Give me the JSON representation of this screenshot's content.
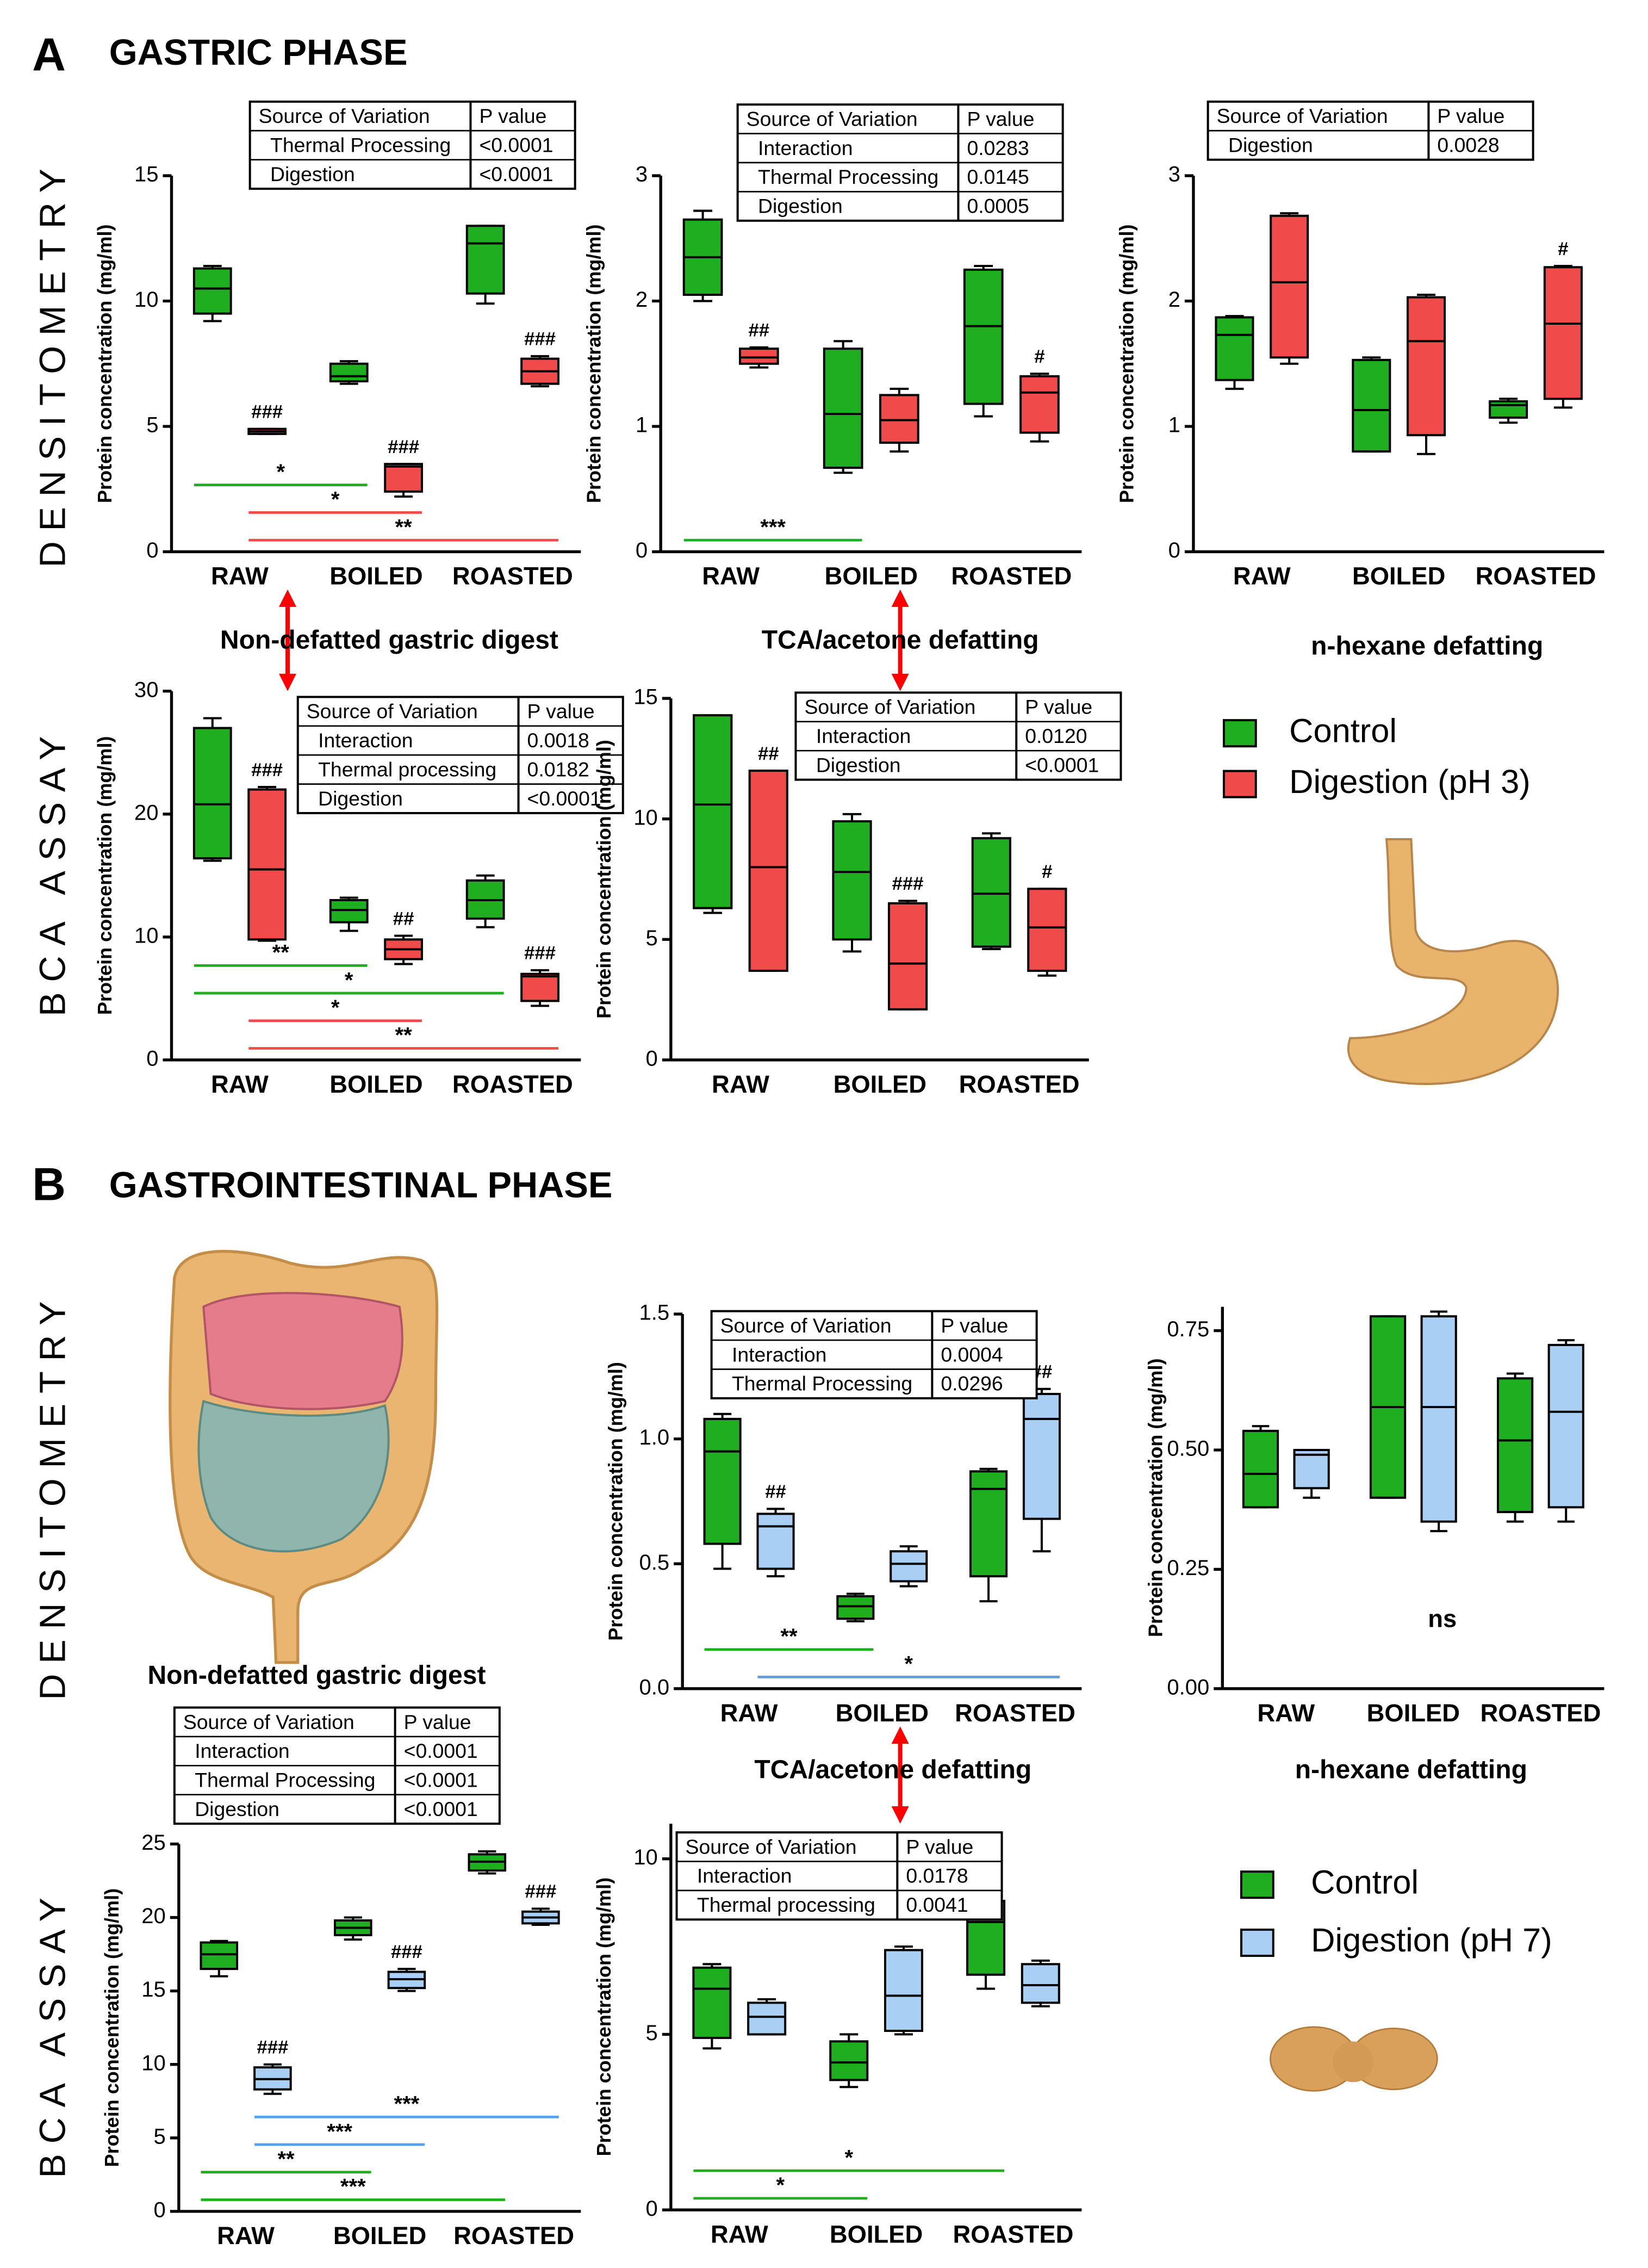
{
  "sections": [
    {
      "label": "A",
      "title": "GASTRIC PHASE",
      "rows": [
        "DENSITOMETRY",
        "BCA ASSAY"
      ],
      "captions": [
        "Non-defatted gastric digest",
        "TCA/acetone defatting",
        "n-hexane defatting"
      ]
    },
    {
      "label": "B",
      "title": "GASTROINTESTINAL PHASE",
      "rows": [
        "DENSITOMETRY",
        "BCA ASSAY"
      ],
      "captions": [
        "Non-defatted gastric digest",
        "TCA/acetone defatting",
        "n-hexane defatting"
      ]
    }
  ],
  "chart_data": [
    {
      "type": "box",
      "ylabel": "Protein concentration (mg/ml)",
      "categories": [
        "RAW",
        "BOILED",
        "ROASTED"
      ],
      "ylim": [
        0,
        15
      ],
      "yticks": [
        0,
        5,
        10,
        15
      ],
      "series": [
        {
          "name": "Control",
          "color": "#1fae1f",
          "min": [
            9.2,
            6.7,
            9.9
          ],
          "q1": [
            9.5,
            6.8,
            10.3
          ],
          "median": [
            10.5,
            7.0,
            12.3
          ],
          "q3": [
            11.3,
            7.5,
            13
          ],
          "max": [
            11.4,
            7.6,
            13
          ],
          "sig_labels": [
            null,
            null,
            null
          ]
        },
        {
          "name": "Digestion (pH 3)",
          "color": "#f04a4a",
          "min": [
            4.7,
            2.2,
            6.6
          ],
          "q1": [
            4.7,
            2.4,
            6.7
          ],
          "median": [
            4.8,
            3.4,
            7.2
          ],
          "q3": [
            4.9,
            3.5,
            7.7
          ],
          "max": [
            4.9,
            3.5,
            7.8
          ],
          "sig_labels": [
            "###",
            "###",
            "###"
          ]
        }
      ],
      "comparisons": [
        {
          "text": "*",
          "series": 0,
          "from": 0,
          "to": 1
        },
        {
          "text": "*",
          "series": 1,
          "from": 0,
          "to": 1
        },
        {
          "text": "**",
          "series": 1,
          "from": 0,
          "to": 2
        }
      ],
      "table": {
        "header": [
          "Source of Variation",
          "P value"
        ],
        "rows": [
          [
            "Thermal Processing",
            "<0.0001"
          ],
          [
            "Digestion",
            "<0.0001"
          ]
        ]
      }
    },
    {
      "type": "box",
      "ylabel": "Protein concentration (mg/ml)",
      "categories": [
        "RAW",
        "BOILED",
        "ROASTED"
      ],
      "ylim": [
        0,
        3
      ],
      "yticks": [
        0,
        1,
        2,
        3
      ],
      "series": [
        {
          "name": "Control",
          "color": "#1fae1f",
          "min": [
            2.0,
            0.63,
            1.08
          ],
          "q1": [
            2.05,
            0.67,
            1.18
          ],
          "median": [
            2.35,
            1.1,
            1.8
          ],
          "q3": [
            2.65,
            1.62,
            2.25
          ],
          "max": [
            2.72,
            1.68,
            2.28
          ],
          "sig_labels": [
            null,
            null,
            null
          ]
        },
        {
          "name": "Digestion (pH 3)",
          "color": "#f04a4a",
          "min": [
            1.47,
            0.8,
            0.88
          ],
          "q1": [
            1.5,
            0.87,
            0.95
          ],
          "median": [
            1.55,
            1.05,
            1.27
          ],
          "q3": [
            1.62,
            1.25,
            1.4
          ],
          "max": [
            1.63,
            1.3,
            1.42
          ],
          "sig_labels": [
            "##",
            null,
            "#"
          ]
        }
      ],
      "comparisons": [
        {
          "text": "***",
          "series": 0,
          "from": 0,
          "to": 1
        }
      ],
      "table": {
        "header": [
          "Source of Variation",
          "P value"
        ],
        "rows": [
          [
            "Interaction",
            "0.0283"
          ],
          [
            "Thermal Processing",
            "0.0145"
          ],
          [
            "Digestion",
            "0.0005"
          ]
        ]
      }
    },
    {
      "type": "box",
      "ylabel": "Protein concentration (mg/ml)",
      "categories": [
        "RAW",
        "BOILED",
        "ROASTED"
      ],
      "ylim": [
        0,
        3
      ],
      "yticks": [
        0,
        1,
        2,
        3
      ],
      "series": [
        {
          "name": "Control",
          "color": "#1fae1f",
          "min": [
            1.3,
            0.8,
            1.03
          ],
          "q1": [
            1.37,
            0.8,
            1.07
          ],
          "median": [
            1.73,
            1.13,
            1.17
          ],
          "q3": [
            1.87,
            1.53,
            1.2
          ],
          "max": [
            1.88,
            1.55,
            1.22
          ],
          "sig_labels": [
            null,
            null,
            null
          ]
        },
        {
          "name": "Digestion (pH 3)",
          "color": "#f04a4a",
          "min": [
            1.5,
            0.78,
            1.15
          ],
          "q1": [
            1.55,
            0.93,
            1.22
          ],
          "median": [
            2.15,
            1.68,
            1.82
          ],
          "q3": [
            2.68,
            2.03,
            2.27
          ],
          "max": [
            2.7,
            2.05,
            2.28
          ],
          "sig_labels": [
            null,
            null,
            "#"
          ]
        }
      ],
      "comparisons": [],
      "table": {
        "header": [
          "Source of Variation",
          "P value"
        ],
        "rows": [
          [
            "Digestion",
            "0.0028"
          ]
        ]
      }
    },
    {
      "type": "box",
      "ylabel": "Protein concentration (mg/ml)",
      "categories": [
        "RAW",
        "BOILED",
        "ROASTED"
      ],
      "ylim": [
        0,
        30
      ],
      "yticks": [
        0,
        10,
        20,
        30
      ],
      "series": [
        {
          "name": "Control",
          "color": "#1fae1f",
          "min": [
            16.2,
            10.5,
            10.8
          ],
          "q1": [
            16.4,
            11.2,
            11.5
          ],
          "median": [
            20.8,
            12.2,
            13
          ],
          "q3": [
            27,
            13,
            14.6
          ],
          "max": [
            27.8,
            13.2,
            15
          ],
          "sig_labels": [
            null,
            null,
            null
          ]
        },
        {
          "name": "Digestion (pH 3)",
          "color": "#f04a4a",
          "min": [
            9.7,
            7.8,
            4.4
          ],
          "q1": [
            9.8,
            8.2,
            4.8
          ],
          "median": [
            15.5,
            9,
            6.8
          ],
          "q3": [
            22,
            9.8,
            7
          ],
          "max": [
            22.2,
            10.1,
            7.3
          ],
          "sig_labels": [
            "###",
            "##",
            "###"
          ]
        }
      ],
      "comparisons": [
        {
          "text": "**",
          "series": 0,
          "from": 0,
          "to": 1
        },
        {
          "text": "*",
          "series": 0,
          "from": 0,
          "to": 2
        },
        {
          "text": "*",
          "series": 1,
          "from": 0,
          "to": 1
        },
        {
          "text": "**",
          "series": 1,
          "from": 0,
          "to": 2
        }
      ],
      "table": {
        "header": [
          "Source of Variation",
          "P value"
        ],
        "rows": [
          [
            "Interaction",
            "0.0018"
          ],
          [
            "Thermal processing",
            "0.0182"
          ],
          [
            "Digestion",
            "<0.0001"
          ]
        ]
      }
    },
    {
      "type": "box",
      "ylabel": "Protein concentration (mg/ml)",
      "categories": [
        "RAW",
        "BOILED",
        "ROASTED"
      ],
      "ylim": [
        0,
        15
      ],
      "yticks": [
        0,
        5,
        10,
        15
      ],
      "series": [
        {
          "name": "Control",
          "color": "#1fae1f",
          "min": [
            6.1,
            4.5,
            4.6
          ],
          "q1": [
            6.3,
            5,
            4.7
          ],
          "median": [
            10.6,
            7.8,
            6.9
          ],
          "q3": [
            14.3,
            9.9,
            9.2
          ],
          "max": [
            14.3,
            10.2,
            9.4
          ],
          "sig_labels": [
            null,
            null,
            null
          ]
        },
        {
          "name": "Digestion (pH 3)",
          "color": "#f04a4a",
          "min": [
            3.7,
            2.1,
            3.5
          ],
          "q1": [
            3.7,
            2.1,
            3.7
          ],
          "median": [
            8,
            4,
            5.5
          ],
          "q3": [
            12,
            6.5,
            7.1
          ],
          "max": [
            12,
            6.6,
            7.1
          ],
          "sig_labels": [
            "##",
            "###",
            "#"
          ]
        }
      ],
      "comparisons": [],
      "table": {
        "header": [
          "Source of Variation",
          "P value"
        ],
        "rows": [
          [
            "Interaction",
            "0.0120"
          ],
          [
            "Digestion",
            "<0.0001"
          ]
        ]
      }
    },
    {
      "type": "box",
      "ylabel": "Protein concentration (mg/ml)",
      "categories": [
        "RAW",
        "BOILED",
        "ROASTED"
      ],
      "ylim": [
        0,
        1.5
      ],
      "yticks": [
        {
          "value": 0,
          "label": "0.0"
        },
        0.5,
        {
          "value": 1,
          "label": "1.0"
        },
        1.5
      ],
      "series": [
        {
          "name": "Control",
          "color": "#1fae1f",
          "min": [
            0.48,
            0.27,
            0.35
          ],
          "q1": [
            0.58,
            0.28,
            0.45
          ],
          "median": [
            0.95,
            0.33,
            0.8
          ],
          "q3": [
            1.08,
            0.37,
            0.87
          ],
          "max": [
            1.1,
            0.38,
            0.88
          ],
          "sig_labels": [
            null,
            null,
            null
          ]
        },
        {
          "name": "Digestion (pH 7)",
          "color": "#a9cff5",
          "min": [
            0.45,
            0.41,
            0.55
          ],
          "q1": [
            0.48,
            0.43,
            0.68
          ],
          "median": [
            0.65,
            0.5,
            1.08
          ],
          "q3": [
            0.7,
            0.55,
            1.18
          ],
          "max": [
            0.72,
            0.57,
            1.2
          ],
          "sig_labels": [
            "##",
            null,
            "##"
          ]
        }
      ],
      "comparisons": [
        {
          "text": "**",
          "series": 0,
          "from": 0,
          "to": 1
        },
        {
          "text": "*",
          "series": 1,
          "from": 0,
          "to": 2
        }
      ],
      "table": {
        "header": [
          "Source of Variation",
          "P value"
        ],
        "rows": [
          [
            "Interaction",
            "0.0004"
          ],
          [
            "Thermal Processing",
            "0.0296"
          ]
        ]
      }
    },
    {
      "type": "box",
      "ylabel": "Protein concentration (mg/ml)",
      "categories": [
        "RAW",
        "BOILED",
        "ROASTED"
      ],
      "ylim": [
        0,
        0.8
      ],
      "yticks": [
        {
          "value": 0,
          "label": "0.00"
        },
        0.25,
        {
          "value": 0.5,
          "label": "0.50"
        },
        0.75
      ],
      "series": [
        {
          "name": "Control",
          "color": "#1fae1f",
          "min": [
            0.38,
            0.4,
            0.35
          ],
          "q1": [
            0.38,
            0.4,
            0.37
          ],
          "median": [
            0.45,
            0.59,
            0.52
          ],
          "q3": [
            0.54,
            0.78,
            0.65
          ],
          "max": [
            0.55,
            0.78,
            0.66
          ],
          "sig_labels": [
            null,
            null,
            null
          ]
        },
        {
          "name": "Digestion (pH 7)",
          "color": "#a9cff5",
          "min": [
            0.4,
            0.33,
            0.35
          ],
          "q1": [
            0.42,
            0.35,
            0.38
          ],
          "median": [
            0.49,
            0.59,
            0.58
          ],
          "q3": [
            0.5,
            0.78,
            0.72
          ],
          "max": [
            0.5,
            0.79,
            0.73
          ],
          "sig_labels": [
            null,
            null,
            null
          ]
        }
      ],
      "comparisons": [],
      "note": "ns"
    },
    {
      "type": "box",
      "ylabel": "Protein concentration (mg/ml)",
      "categories": [
        "RAW",
        "BOILED",
        "ROASTED"
      ],
      "ylim": [
        0,
        25
      ],
      "yticks": [
        0,
        5,
        10,
        15,
        20,
        25
      ],
      "series": [
        {
          "name": "Control",
          "color": "#1fae1f",
          "min": [
            16,
            18.5,
            23
          ],
          "q1": [
            16.5,
            18.8,
            23.2
          ],
          "median": [
            17.5,
            19.3,
            23.8
          ],
          "q3": [
            18.3,
            19.8,
            24.3
          ],
          "max": [
            18.4,
            20,
            24.5
          ],
          "sig_labels": [
            null,
            null,
            null
          ]
        },
        {
          "name": "Digestion (pH 7)",
          "color": "#a9cff5",
          "min": [
            8,
            15,
            19.5
          ],
          "q1": [
            8.3,
            15.2,
            19.6
          ],
          "median": [
            9,
            15.8,
            20
          ],
          "q3": [
            9.8,
            16.3,
            20.4
          ],
          "max": [
            10,
            16.5,
            20.6
          ],
          "sig_labels": [
            "###",
            "###",
            "###"
          ]
        }
      ],
      "comparisons": [
        {
          "text": "***",
          "series": 1,
          "from": 0,
          "to": 2
        },
        {
          "text": "***",
          "series": 1,
          "from": 0,
          "to": 1
        },
        {
          "text": "**",
          "series": 0,
          "from": 0,
          "to": 1
        },
        {
          "text": "***",
          "series": 0,
          "from": 0,
          "to": 2
        }
      ],
      "table": {
        "header": [
          "Source of Variation",
          "P value"
        ],
        "rows": [
          [
            "Interaction",
            "<0.0001"
          ],
          [
            "Thermal Processing",
            "<0.0001"
          ],
          [
            "Digestion",
            "<0.0001"
          ]
        ]
      }
    },
    {
      "type": "box",
      "ylabel": "Protein concentration (mg/ml)",
      "categories": [
        "RAW",
        "BOILED",
        "ROASTED"
      ],
      "ylim": [
        0,
        11
      ],
      "yticks": [
        0,
        5,
        10
      ],
      "series": [
        {
          "name": "Control",
          "color": "#1fae1f",
          "min": [
            4.6,
            3.5,
            6.3
          ],
          "q1": [
            4.9,
            3.7,
            6.7
          ],
          "median": [
            6.3,
            4.2,
            8.2
          ],
          "q3": [
            6.9,
            4.8,
            8.8
          ],
          "max": [
            7,
            5,
            9
          ],
          "sig_labels": [
            null,
            null,
            null
          ]
        },
        {
          "name": "Digestion (pH 7)",
          "color": "#a9cff5",
          "min": [
            5,
            5,
            5.8
          ],
          "q1": [
            5,
            5.1,
            5.9
          ],
          "median": [
            5.5,
            6.1,
            6.4
          ],
          "q3": [
            5.9,
            7.4,
            7
          ],
          "max": [
            6,
            7.5,
            7.1
          ],
          "sig_labels": [
            null,
            null,
            null
          ]
        }
      ],
      "comparisons": [
        {
          "text": "*",
          "series": 0,
          "from": 0,
          "to": 2
        },
        {
          "text": "*",
          "series": 0,
          "from": 0,
          "to": 1
        }
      ],
      "table": {
        "header": [
          "Source of Variation",
          "P value"
        ],
        "rows": [
          [
            "Interaction",
            "0.0178"
          ],
          [
            "Thermal processing",
            "0.0041"
          ]
        ]
      }
    }
  ]
}
